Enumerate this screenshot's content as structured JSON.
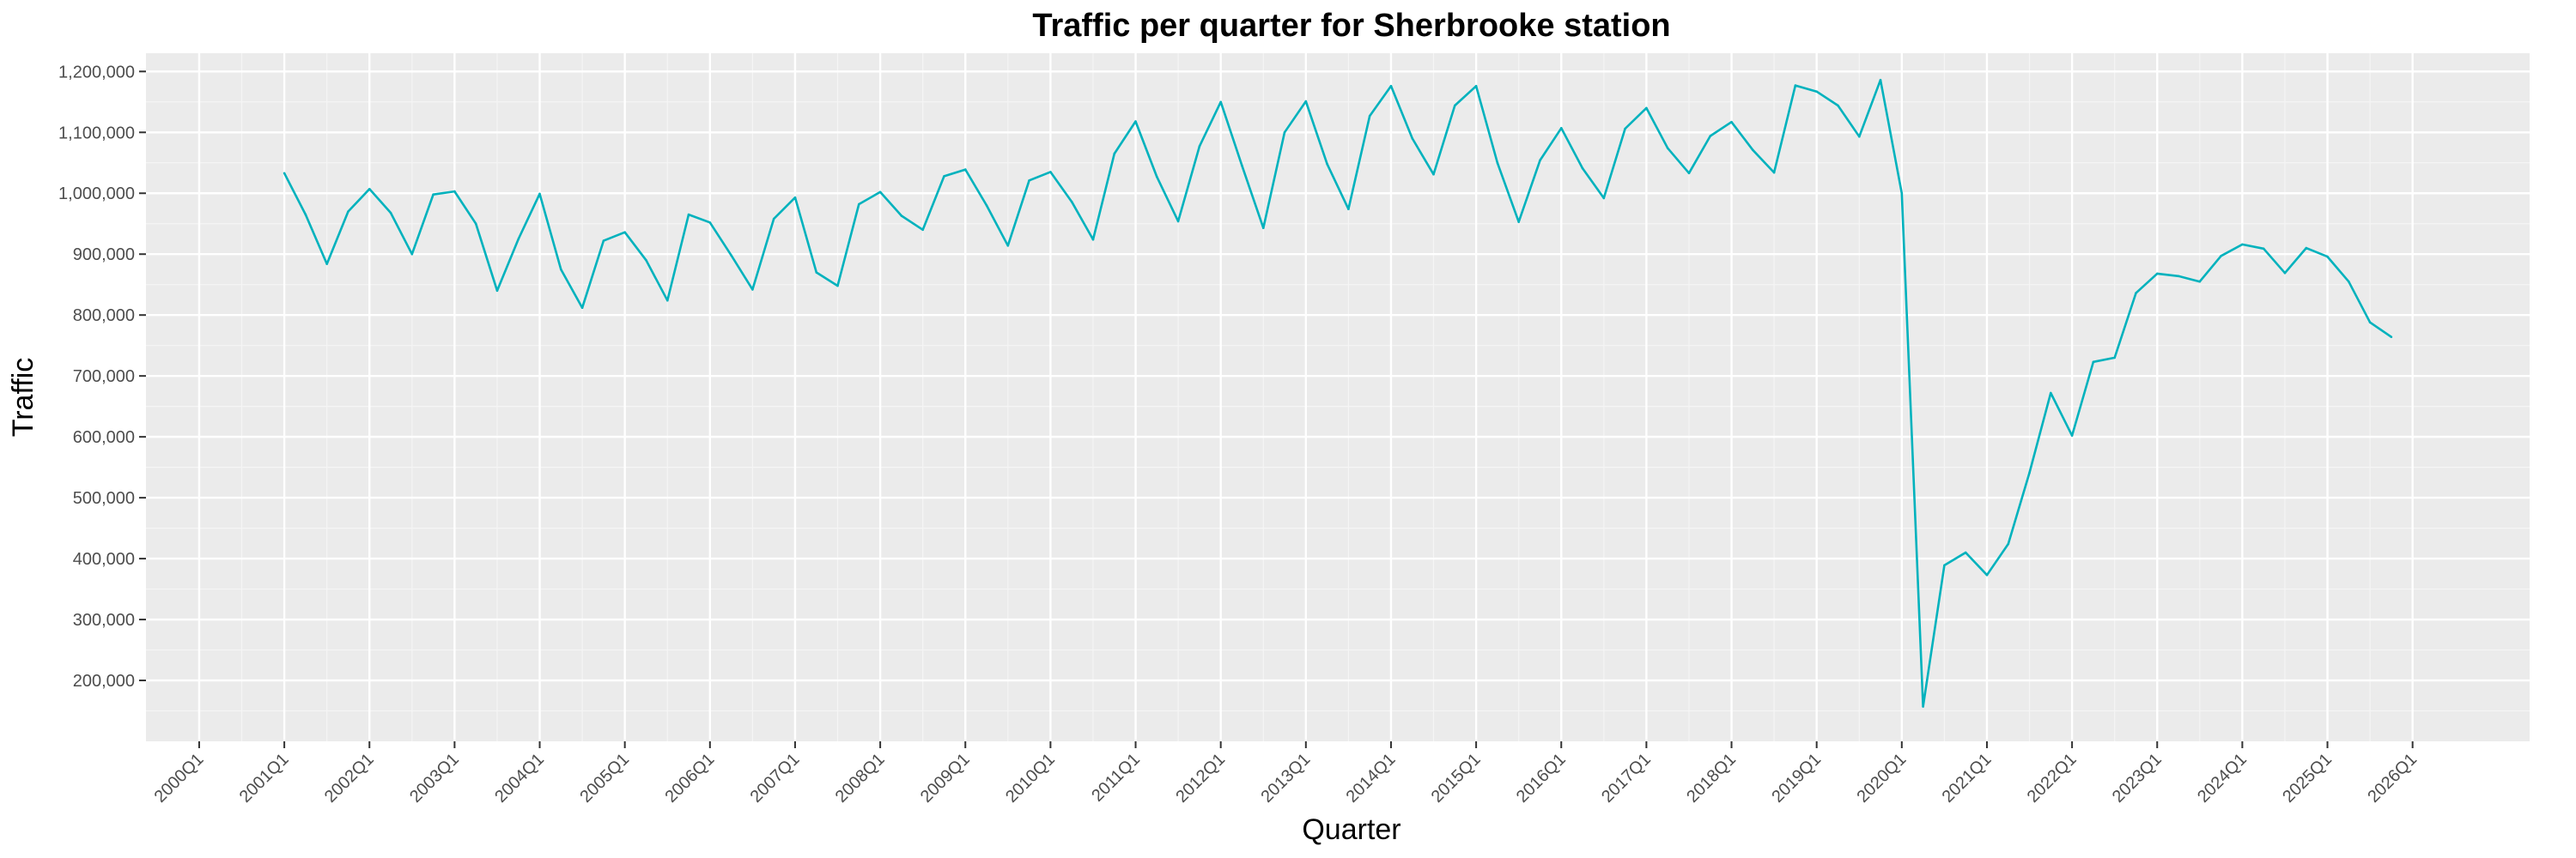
{
  "colors": {
    "panel_background": "#ebebeb",
    "grid_major": "#ffffff",
    "grid_minor": "#f5f5f5",
    "line": "#00b2bd",
    "tick_text": "#4d4d4d",
    "title_text": "#000000"
  },
  "chart_data": {
    "type": "line",
    "title": "Traffic per quarter for Sherbrooke station",
    "xlabel": "Quarter",
    "ylabel": "Traffic",
    "x_tick_labels": [
      "2000Q1",
      "2001Q1",
      "2002Q1",
      "2003Q1",
      "2004Q1",
      "2005Q1",
      "2006Q1",
      "2007Q1",
      "2008Q1",
      "2009Q1",
      "2010Q1",
      "2011Q1",
      "2012Q1",
      "2013Q1",
      "2014Q1",
      "2015Q1",
      "2016Q1",
      "2017Q1",
      "2018Q1",
      "2019Q1",
      "2020Q1",
      "2021Q1",
      "2022Q1",
      "2023Q1",
      "2024Q1",
      "2025Q1",
      "2026Q1"
    ],
    "y_ticks": [
      200000,
      300000,
      400000,
      500000,
      600000,
      700000,
      800000,
      900000,
      1000000,
      1100000,
      1200000
    ],
    "y_tick_labels": [
      "200,000",
      "300,000",
      "400,000",
      "500,000",
      "600,000",
      "700,000",
      "800,000",
      "900,000",
      "1,000,000",
      "1,100,000",
      "1,200,000"
    ],
    "xlim": [
      "2000Q1",
      "2026Q4"
    ],
    "ylim": [
      100000,
      1230000
    ],
    "grid": true,
    "legend": "none",
    "series": [
      {
        "x": [
          "2001Q1",
          "2001Q2",
          "2001Q3",
          "2001Q4",
          "2002Q1",
          "2002Q2",
          "2002Q3",
          "2002Q4",
          "2003Q1",
          "2003Q2",
          "2003Q3",
          "2003Q4",
          "2004Q1",
          "2004Q2",
          "2004Q3",
          "2004Q4",
          "2005Q1",
          "2005Q2",
          "2005Q3",
          "2005Q4",
          "2006Q1",
          "2006Q2",
          "2006Q3",
          "2006Q4",
          "2007Q1",
          "2007Q2",
          "2007Q3",
          "2007Q4",
          "2008Q1",
          "2008Q2",
          "2008Q3",
          "2008Q4",
          "2009Q1",
          "2009Q2",
          "2009Q3",
          "2009Q4",
          "2010Q1",
          "2010Q2",
          "2010Q3",
          "2010Q4",
          "2011Q1",
          "2011Q2",
          "2011Q3",
          "2011Q4",
          "2012Q1",
          "2012Q2",
          "2012Q3",
          "2012Q4",
          "2013Q1",
          "2013Q2",
          "2013Q3",
          "2013Q4",
          "2014Q1",
          "2014Q2",
          "2014Q3",
          "2014Q4",
          "2015Q1",
          "2015Q2",
          "2015Q3",
          "2015Q4",
          "2016Q1",
          "2016Q2",
          "2016Q3",
          "2016Q4",
          "2017Q1",
          "2017Q2",
          "2017Q3",
          "2017Q4",
          "2018Q1",
          "2018Q2",
          "2018Q3",
          "2018Q4",
          "2019Q1",
          "2019Q2",
          "2019Q3",
          "2019Q4",
          "2020Q1",
          "2020Q2",
          "2020Q3",
          "2020Q4",
          "2021Q1",
          "2021Q2",
          "2021Q3",
          "2021Q4",
          "2022Q1",
          "2022Q2",
          "2022Q3",
          "2022Q4",
          "2023Q1",
          "2023Q2",
          "2023Q3",
          "2023Q4",
          "2024Q1",
          "2024Q2",
          "2024Q3",
          "2024Q4",
          "2025Q1",
          "2025Q2",
          "2025Q3",
          "2025Q4"
        ],
        "y": [
          1033000,
          965000,
          884000,
          970000,
          1007000,
          968000,
          900000,
          998000,
          1003000,
          950000,
          840000,
          925000,
          999000,
          875000,
          812000,
          922000,
          936000,
          890000,
          824000,
          965000,
          952000,
          898000,
          842000,
          958000,
          993000,
          870000,
          848000,
          982000,
          1002000,
          963000,
          940000,
          1028000,
          1039000,
          980000,
          914000,
          1021000,
          1035000,
          986000,
          924000,
          1065000,
          1118000,
          1027000,
          954000,
          1077000,
          1150000,
          1045000,
          943000,
          1100000,
          1151000,
          1048000,
          974000,
          1127000,
          1176000,
          1090000,
          1031000,
          1144000,
          1176000,
          1050000,
          953000,
          1054000,
          1107000,
          1041000,
          992000,
          1106000,
          1140000,
          1074000,
          1033000,
          1094000,
          1117000,
          1071000,
          1034000,
          1177000,
          1167000,
          1144000,
          1093000,
          1186000,
          1000000,
          157000,
          389000,
          410000,
          373000,
          424000,
          541000,
          672000,
          602000,
          723000,
          730000,
          836000,
          868000,
          864000,
          855000,
          897000,
          916000,
          909000,
          869000,
          910000,
          896000,
          855000,
          788000,
          764000
        ]
      }
    ]
  }
}
